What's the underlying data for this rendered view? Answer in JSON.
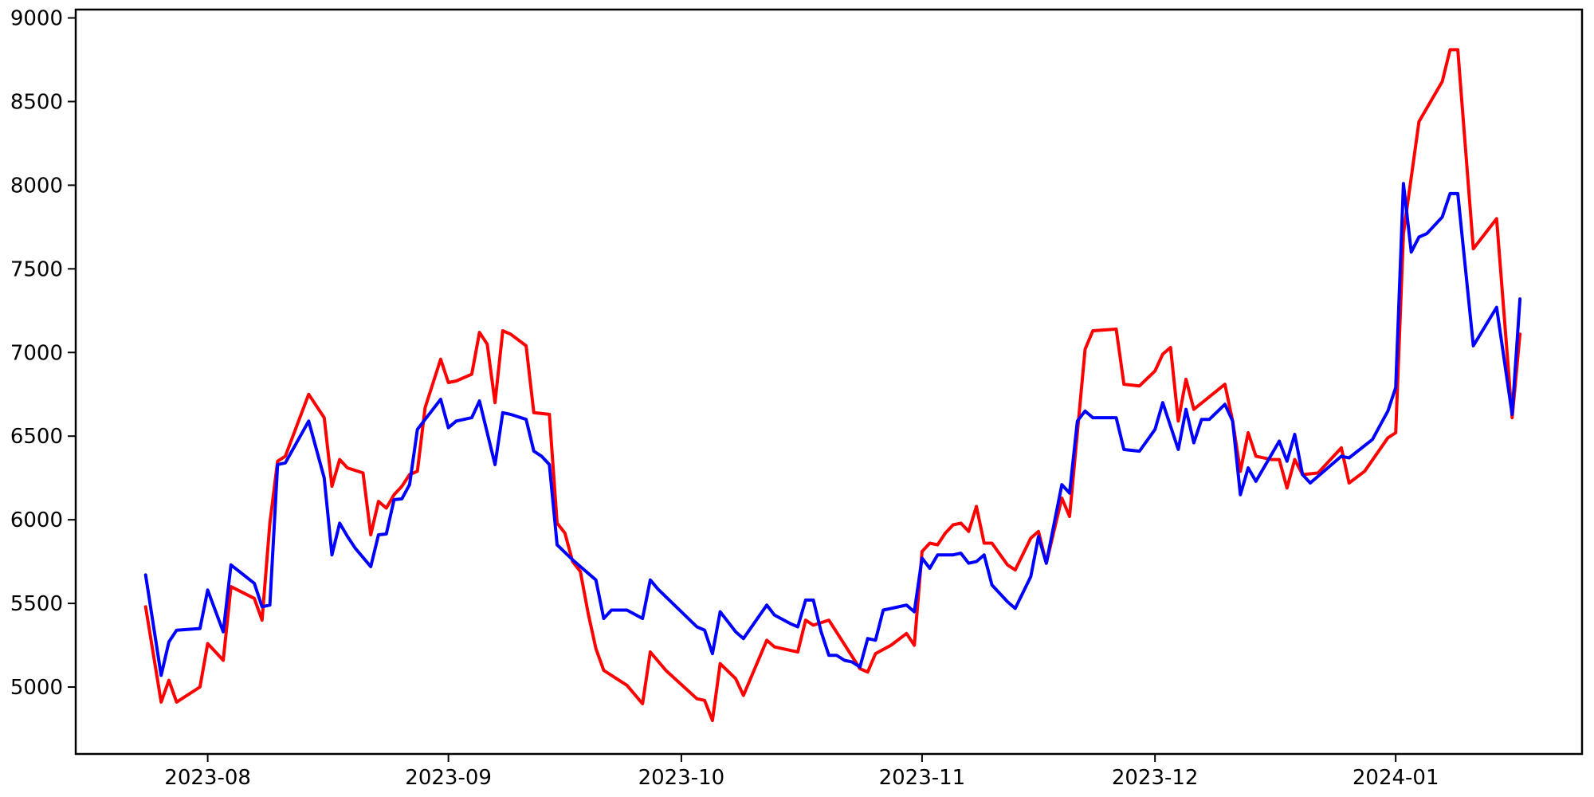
{
  "figure": {
    "background": "#ffffff"
  },
  "chart_data": {
    "type": "line",
    "title": "",
    "xlabel": "",
    "ylabel": "",
    "grid": false,
    "legend": "none",
    "axis_color": "#000000",
    "tick_label_color": "#000000",
    "x_range": [
      "2023-07-15",
      "2024-01-25"
    ],
    "y_range": [
      4600,
      9050
    ],
    "y_ticks": [
      5000,
      5500,
      6000,
      6500,
      7000,
      7500,
      8000,
      8500,
      9000
    ],
    "x_ticks": [
      {
        "label": "2023-08",
        "date": "2023-08-01"
      },
      {
        "label": "2023-09",
        "date": "2023-09-01"
      },
      {
        "label": "2023-10",
        "date": "2023-10-01"
      },
      {
        "label": "2023-11",
        "date": "2023-11-01"
      },
      {
        "label": "2023-12",
        "date": "2023-12-01"
      },
      {
        "label": "2024-01",
        "date": "2024-01-01"
      }
    ],
    "series": [
      {
        "name": "red-series",
        "color": "#ff0000",
        "points": [
          [
            "2023-07-24",
            5480
          ],
          [
            "2023-07-26",
            4910
          ],
          [
            "2023-07-27",
            5040
          ],
          [
            "2023-07-28",
            4910
          ],
          [
            "2023-07-31",
            5000
          ],
          [
            "2023-08-01",
            5260
          ],
          [
            "2023-08-02",
            5210
          ],
          [
            "2023-08-03",
            5160
          ],
          [
            "2023-08-04",
            5600
          ],
          [
            "2023-08-07",
            5530
          ],
          [
            "2023-08-08",
            5400
          ],
          [
            "2023-08-09",
            5980
          ],
          [
            "2023-08-10",
            6350
          ],
          [
            "2023-08-11",
            6380
          ],
          [
            "2023-08-14",
            6750
          ],
          [
            "2023-08-16",
            6610
          ],
          [
            "2023-08-17",
            6200
          ],
          [
            "2023-08-18",
            6360
          ],
          [
            "2023-08-19",
            6310
          ],
          [
            "2023-08-21",
            6280
          ],
          [
            "2023-08-22",
            5910
          ],
          [
            "2023-08-23",
            6110
          ],
          [
            "2023-08-24",
            6070
          ],
          [
            "2023-08-25",
            6150
          ],
          [
            "2023-08-26",
            6200
          ],
          [
            "2023-08-27",
            6270
          ],
          [
            "2023-08-28",
            6290
          ],
          [
            "2023-08-29",
            6670
          ],
          [
            "2023-08-31",
            6960
          ],
          [
            "2023-09-01",
            6820
          ],
          [
            "2023-09-02",
            6830
          ],
          [
            "2023-09-04",
            6870
          ],
          [
            "2023-09-05",
            7120
          ],
          [
            "2023-09-06",
            7050
          ],
          [
            "2023-09-07",
            6700
          ],
          [
            "2023-09-08",
            7130
          ],
          [
            "2023-09-09",
            7110
          ],
          [
            "2023-09-11",
            7040
          ],
          [
            "2023-09-12",
            6640
          ],
          [
            "2023-09-14",
            6630
          ],
          [
            "2023-09-15",
            5980
          ],
          [
            "2023-09-16",
            5920
          ],
          [
            "2023-09-17",
            5750
          ],
          [
            "2023-09-18",
            5690
          ],
          [
            "2023-09-19",
            5440
          ],
          [
            "2023-09-20",
            5230
          ],
          [
            "2023-09-21",
            5100
          ],
          [
            "2023-09-24",
            5010
          ],
          [
            "2023-09-26",
            4900
          ],
          [
            "2023-09-27",
            5210
          ],
          [
            "2023-09-29",
            5100
          ],
          [
            "2023-10-03",
            4930
          ],
          [
            "2023-10-04",
            4920
          ],
          [
            "2023-10-05",
            4800
          ],
          [
            "2023-10-06",
            5140
          ],
          [
            "2023-10-08",
            5050
          ],
          [
            "2023-10-09",
            4950
          ],
          [
            "2023-10-12",
            5280
          ],
          [
            "2023-10-13",
            5240
          ],
          [
            "2023-10-15",
            5220
          ],
          [
            "2023-10-16",
            5210
          ],
          [
            "2023-10-17",
            5400
          ],
          [
            "2023-10-18",
            5370
          ],
          [
            "2023-10-20",
            5400
          ],
          [
            "2023-10-24",
            5110
          ],
          [
            "2023-10-25",
            5090
          ],
          [
            "2023-10-26",
            5200
          ],
          [
            "2023-10-28",
            5250
          ],
          [
            "2023-10-30",
            5320
          ],
          [
            "2023-10-31",
            5250
          ],
          [
            "2023-11-01",
            5810
          ],
          [
            "2023-11-02",
            5860
          ],
          [
            "2023-11-03",
            5850
          ],
          [
            "2023-11-04",
            5920
          ],
          [
            "2023-11-05",
            5970
          ],
          [
            "2023-11-06",
            5980
          ],
          [
            "2023-11-07",
            5930
          ],
          [
            "2023-11-08",
            6080
          ],
          [
            "2023-11-09",
            5860
          ],
          [
            "2023-11-10",
            5860
          ],
          [
            "2023-11-12",
            5730
          ],
          [
            "2023-11-13",
            5700
          ],
          [
            "2023-11-15",
            5890
          ],
          [
            "2023-11-16",
            5930
          ],
          [
            "2023-11-17",
            5740
          ],
          [
            "2023-11-19",
            6130
          ],
          [
            "2023-11-20",
            6020
          ],
          [
            "2023-11-22",
            7020
          ],
          [
            "2023-11-23",
            7130
          ],
          [
            "2023-11-26",
            7140
          ],
          [
            "2023-11-27",
            6810
          ],
          [
            "2023-11-29",
            6800
          ],
          [
            "2023-12-01",
            6890
          ],
          [
            "2023-12-02",
            6990
          ],
          [
            "2023-12-03",
            7030
          ],
          [
            "2023-12-04",
            6590
          ],
          [
            "2023-12-05",
            6840
          ],
          [
            "2023-12-06",
            6660
          ],
          [
            "2023-12-10",
            6810
          ],
          [
            "2023-12-11",
            6590
          ],
          [
            "2023-12-12",
            6290
          ],
          [
            "2023-12-13",
            6520
          ],
          [
            "2023-12-14",
            6380
          ],
          [
            "2023-12-16",
            6360
          ],
          [
            "2023-12-17",
            6360
          ],
          [
            "2023-12-18",
            6190
          ],
          [
            "2023-12-19",
            6360
          ],
          [
            "2023-12-20",
            6270
          ],
          [
            "2023-12-22",
            6280
          ],
          [
            "2023-12-25",
            6430
          ],
          [
            "2023-12-26",
            6220
          ],
          [
            "2023-12-28",
            6290
          ],
          [
            "2023-12-31",
            6490
          ],
          [
            "2024-01-01",
            6520
          ],
          [
            "2024-01-02",
            7710
          ],
          [
            "2024-01-04",
            8380
          ],
          [
            "2024-01-07",
            8620
          ],
          [
            "2024-01-08",
            8810
          ],
          [
            "2024-01-09",
            8810
          ],
          [
            "2024-01-11",
            7620
          ],
          [
            "2024-01-14",
            7800
          ],
          [
            "2024-01-16",
            6610
          ],
          [
            "2024-01-17",
            7110
          ]
        ]
      },
      {
        "name": "blue-series",
        "color": "#0000ff",
        "points": [
          [
            "2023-07-24",
            5670
          ],
          [
            "2023-07-26",
            5070
          ],
          [
            "2023-07-27",
            5270
          ],
          [
            "2023-07-28",
            5340
          ],
          [
            "2023-07-31",
            5350
          ],
          [
            "2023-08-01",
            5580
          ],
          [
            "2023-08-03",
            5330
          ],
          [
            "2023-08-04",
            5730
          ],
          [
            "2023-08-07",
            5620
          ],
          [
            "2023-08-08",
            5480
          ],
          [
            "2023-08-09",
            5490
          ],
          [
            "2023-08-10",
            6330
          ],
          [
            "2023-08-11",
            6340
          ],
          [
            "2023-08-14",
            6590
          ],
          [
            "2023-08-16",
            6250
          ],
          [
            "2023-08-17",
            5790
          ],
          [
            "2023-08-18",
            5980
          ],
          [
            "2023-08-19",
            5900
          ],
          [
            "2023-08-20",
            5830
          ],
          [
            "2023-08-22",
            5720
          ],
          [
            "2023-08-23",
            5910
          ],
          [
            "2023-08-24",
            5915
          ],
          [
            "2023-08-25",
            6120
          ],
          [
            "2023-08-26",
            6125
          ],
          [
            "2023-08-27",
            6210
          ],
          [
            "2023-08-28",
            6540
          ],
          [
            "2023-08-31",
            6720
          ],
          [
            "2023-09-01",
            6550
          ],
          [
            "2023-09-02",
            6590
          ],
          [
            "2023-09-04",
            6610
          ],
          [
            "2023-09-05",
            6710
          ],
          [
            "2023-09-07",
            6330
          ],
          [
            "2023-09-08",
            6640
          ],
          [
            "2023-09-09",
            6630
          ],
          [
            "2023-09-11",
            6600
          ],
          [
            "2023-09-12",
            6410
          ],
          [
            "2023-09-13",
            6380
          ],
          [
            "2023-09-14",
            6330
          ],
          [
            "2023-09-15",
            5850
          ],
          [
            "2023-09-17",
            5760
          ],
          [
            "2023-09-18",
            5720
          ],
          [
            "2023-09-20",
            5640
          ],
          [
            "2023-09-21",
            5410
          ],
          [
            "2023-09-22",
            5460
          ],
          [
            "2023-09-24",
            5460
          ],
          [
            "2023-09-26",
            5410
          ],
          [
            "2023-09-27",
            5640
          ],
          [
            "2023-09-28",
            5585
          ],
          [
            "2023-10-03",
            5360
          ],
          [
            "2023-10-04",
            5340
          ],
          [
            "2023-10-05",
            5200
          ],
          [
            "2023-10-06",
            5450
          ],
          [
            "2023-10-07",
            5390
          ],
          [
            "2023-10-08",
            5330
          ],
          [
            "2023-10-09",
            5290
          ],
          [
            "2023-10-12",
            5490
          ],
          [
            "2023-10-13",
            5430
          ],
          [
            "2023-10-15",
            5380
          ],
          [
            "2023-10-16",
            5360
          ],
          [
            "2023-10-17",
            5520
          ],
          [
            "2023-10-18",
            5520
          ],
          [
            "2023-10-19",
            5330
          ],
          [
            "2023-10-20",
            5190
          ],
          [
            "2023-10-21",
            5190
          ],
          [
            "2023-10-22",
            5160
          ],
          [
            "2023-10-23",
            5150
          ],
          [
            "2023-10-24",
            5120
          ],
          [
            "2023-10-25",
            5290
          ],
          [
            "2023-10-26",
            5280
          ],
          [
            "2023-10-27",
            5460
          ],
          [
            "2023-10-30",
            5490
          ],
          [
            "2023-10-31",
            5450
          ],
          [
            "2023-11-01",
            5770
          ],
          [
            "2023-11-02",
            5710
          ],
          [
            "2023-11-03",
            5790
          ],
          [
            "2023-11-05",
            5790
          ],
          [
            "2023-11-06",
            5800
          ],
          [
            "2023-11-07",
            5740
          ],
          [
            "2023-11-08",
            5750
          ],
          [
            "2023-11-09",
            5790
          ],
          [
            "2023-11-10",
            5610
          ],
          [
            "2023-11-12",
            5510
          ],
          [
            "2023-11-13",
            5470
          ],
          [
            "2023-11-15",
            5660
          ],
          [
            "2023-11-16",
            5900
          ],
          [
            "2023-11-17",
            5740
          ],
          [
            "2023-11-19",
            6210
          ],
          [
            "2023-11-20",
            6160
          ],
          [
            "2023-11-21",
            6590
          ],
          [
            "2023-11-22",
            6650
          ],
          [
            "2023-11-23",
            6610
          ],
          [
            "2023-11-26",
            6610
          ],
          [
            "2023-11-27",
            6420
          ],
          [
            "2023-11-29",
            6410
          ],
          [
            "2023-12-01",
            6540
          ],
          [
            "2023-12-02",
            6700
          ],
          [
            "2023-12-04",
            6420
          ],
          [
            "2023-12-05",
            6660
          ],
          [
            "2023-12-06",
            6460
          ],
          [
            "2023-12-07",
            6600
          ],
          [
            "2023-12-08",
            6600
          ],
          [
            "2023-12-10",
            6690
          ],
          [
            "2023-12-11",
            6590
          ],
          [
            "2023-12-12",
            6150
          ],
          [
            "2023-12-13",
            6310
          ],
          [
            "2023-12-14",
            6230
          ],
          [
            "2023-12-17",
            6470
          ],
          [
            "2023-12-18",
            6350
          ],
          [
            "2023-12-19",
            6510
          ],
          [
            "2023-12-20",
            6270
          ],
          [
            "2023-12-21",
            6220
          ],
          [
            "2023-12-25",
            6380
          ],
          [
            "2023-12-26",
            6370
          ],
          [
            "2023-12-29",
            6480
          ],
          [
            "2023-12-31",
            6650
          ],
          [
            "2024-01-01",
            6790
          ],
          [
            "2024-01-02",
            8010
          ],
          [
            "2024-01-03",
            7600
          ],
          [
            "2024-01-04",
            7690
          ],
          [
            "2024-01-05",
            7710
          ],
          [
            "2024-01-07",
            7810
          ],
          [
            "2024-01-08",
            7950
          ],
          [
            "2024-01-09",
            7950
          ],
          [
            "2024-01-11",
            7040
          ],
          [
            "2024-01-14",
            7270
          ],
          [
            "2024-01-16",
            6630
          ],
          [
            "2024-01-17",
            7320
          ]
        ]
      }
    ]
  }
}
